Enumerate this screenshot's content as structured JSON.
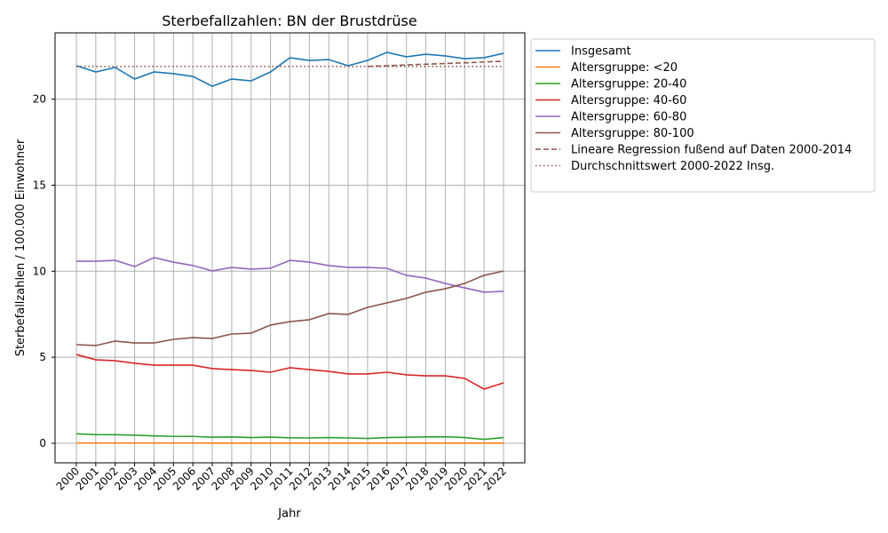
{
  "chart_data": {
    "type": "line",
    "title": "Sterbefallzahlen: BN der Brustdrüse",
    "xlabel": "Jahr",
    "ylabel": "Sterbefallzahlen / 100.000 Einwohner",
    "x": [
      "2000",
      "2001",
      "2002",
      "2003",
      "2004",
      "2005",
      "2006",
      "2007",
      "2008",
      "2009",
      "2010",
      "2011",
      "2012",
      "2013",
      "2014",
      "2015",
      "2016",
      "2017",
      "2018",
      "2019",
      "2020",
      "2021",
      "2022"
    ],
    "yticks": [
      "0",
      "5",
      "10",
      "15",
      "20"
    ],
    "ylim": [
      -1.2,
      23.9
    ],
    "grid": true,
    "legend_position": "outside-right",
    "series": [
      {
        "name": "Insgesamt",
        "color": "#1f77b4",
        "dash": "",
        "values": [
          21.94,
          21.58,
          21.84,
          21.17,
          21.58,
          21.48,
          21.32,
          20.75,
          21.17,
          21.06,
          21.58,
          22.41,
          22.25,
          22.3,
          21.94,
          22.25,
          22.72,
          22.46,
          22.61,
          22.51,
          22.35,
          22.41,
          22.66
        ]
      },
      {
        "name": "Altersgruppe: <20",
        "color": "#ff7f0e",
        "dash": "",
        "values": [
          0.02,
          0.02,
          0.02,
          0.02,
          0.02,
          0.02,
          0.02,
          0.01,
          0.01,
          0.01,
          0.01,
          0.01,
          0.01,
          0.01,
          0.01,
          0.01,
          0.01,
          0.01,
          0.01,
          0.01,
          0.01,
          0.01,
          0.01
        ]
      },
      {
        "name": "Altersgruppe: 20-40",
        "color": "#2ca02c",
        "dash": "",
        "values": [
          0.55,
          0.5,
          0.5,
          0.47,
          0.43,
          0.4,
          0.4,
          0.35,
          0.37,
          0.33,
          0.36,
          0.32,
          0.31,
          0.33,
          0.31,
          0.28,
          0.33,
          0.35,
          0.37,
          0.38,
          0.33,
          0.23,
          0.33
        ]
      },
      {
        "name": "Altersgruppe: 40-60",
        "color": "#d62728",
        "dash": "",
        "values": [
          5.16,
          4.85,
          4.8,
          4.65,
          4.54,
          4.54,
          4.54,
          4.34,
          4.28,
          4.23,
          4.13,
          4.39,
          4.28,
          4.18,
          4.03,
          4.03,
          4.13,
          3.98,
          3.92,
          3.92,
          3.77,
          3.15,
          3.51
        ]
      },
      {
        "name": "Altersgruppe: 60-80",
        "color": "#9467bd",
        "dash": "",
        "values": [
          10.58,
          10.58,
          10.63,
          10.27,
          10.79,
          10.53,
          10.33,
          10.02,
          10.22,
          10.12,
          10.17,
          10.63,
          10.53,
          10.33,
          10.22,
          10.22,
          10.17,
          9.76,
          9.6,
          9.29,
          9.03,
          8.78,
          8.83
        ]
      },
      {
        "name": "Altersgruppe: 80-100",
        "color": "#8c564b",
        "dash": "",
        "values": [
          5.73,
          5.68,
          5.94,
          5.83,
          5.83,
          6.04,
          6.14,
          6.09,
          6.35,
          6.4,
          6.87,
          7.07,
          7.18,
          7.54,
          7.49,
          7.9,
          8.16,
          8.42,
          8.78,
          8.98,
          9.29,
          9.76,
          10.01
        ]
      },
      {
        "name": "Lineare Regression fußend auf Daten 2000-2014",
        "color": "#8c564b",
        "dash": "6,3",
        "values": [
          null,
          null,
          null,
          null,
          null,
          null,
          null,
          null,
          null,
          null,
          null,
          null,
          null,
          null,
          null,
          21.9,
          21.94,
          21.99,
          22.03,
          22.07,
          22.11,
          22.16,
          22.2
        ]
      },
      {
        "name": "Durchschnittswert 2000-2022 Insg.",
        "color": "#8c564b",
        "dash": "1.5,3",
        "values": [
          21.9,
          21.9,
          21.9,
          21.9,
          21.9,
          21.9,
          21.9,
          21.9,
          21.9,
          21.9,
          21.9,
          21.9,
          21.9,
          21.9,
          21.9,
          21.9,
          21.9,
          21.9,
          21.9,
          21.9,
          21.9,
          21.9,
          21.9
        ]
      }
    ]
  }
}
